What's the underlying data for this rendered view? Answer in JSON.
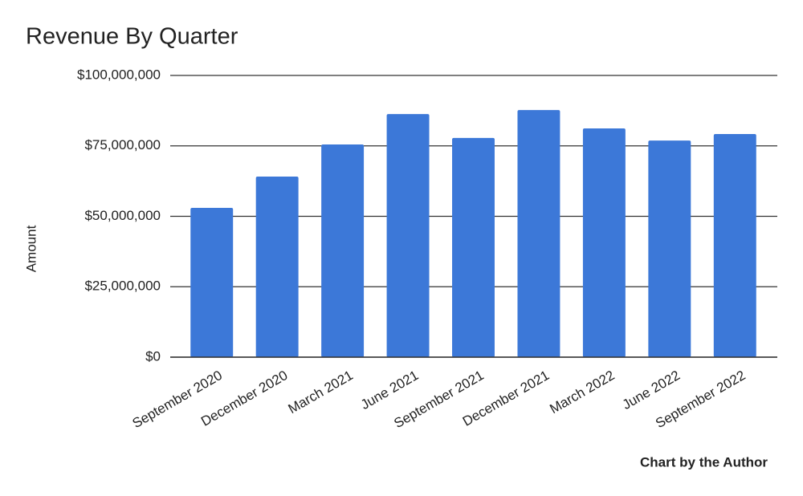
{
  "chart_data": {
    "type": "bar",
    "title": "Revenue By Quarter",
    "y_label": "Amount",
    "footer": "Chart by the Author",
    "categories": [
      "September 2020",
      "December 2020",
      "March 2021",
      "June 2021",
      "September 2021",
      "December 2021",
      "March 2022",
      "June 2022",
      "September 2022"
    ],
    "values": [
      53000000,
      64100000,
      75500000,
      86300000,
      77800000,
      87700000,
      81200000,
      76900000,
      79200000
    ],
    "color": "#3c78d8",
    "ylim": [
      0,
      100000000
    ],
    "yticks": [
      {
        "value": 0,
        "label": "$0"
      },
      {
        "value": 25000000,
        "label": "$25,000,000"
      },
      {
        "value": 50000000,
        "label": "$50,000,000"
      },
      {
        "value": 75000000,
        "label": "$75,000,000"
      },
      {
        "value": 100000000,
        "label": "$100,000,000"
      }
    ],
    "grid": true
  }
}
